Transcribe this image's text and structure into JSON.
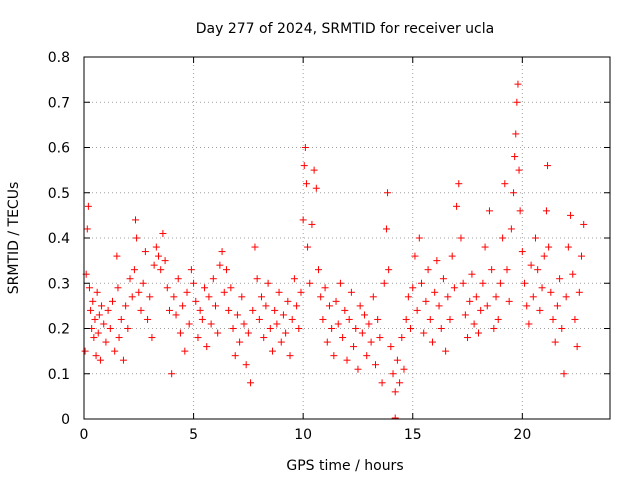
{
  "chart_data": {
    "type": "scatter",
    "title": "Day 277 of 2024, SRMTID for receiver ucla",
    "xlabel": "GPS time / hours",
    "ylabel": "SRMTID / TECUs",
    "xlim": [
      0,
      24
    ],
    "ylim": [
      0,
      0.8
    ],
    "xticks": [
      0,
      5,
      10,
      15,
      20
    ],
    "xtick_labels": [
      "0",
      "5",
      "10",
      "15",
      "20"
    ],
    "yticks": [
      0,
      0.1,
      0.2,
      0.3,
      0.4,
      0.5,
      0.6,
      0.7,
      0.8
    ],
    "ytick_labels": [
      "0",
      "0.1",
      "0.2",
      "0.3",
      "0.4",
      "0.5",
      "0.6",
      "0.7",
      "0.8"
    ],
    "grid": true,
    "marker": "+",
    "color": "#ff0000",
    "series": [
      {
        "name": "SRMTID",
        "points": [
          [
            0.05,
            0.15
          ],
          [
            0.1,
            0.32
          ],
          [
            0.15,
            0.42
          ],
          [
            0.2,
            0.47
          ],
          [
            0.25,
            0.29
          ],
          [
            0.3,
            0.24
          ],
          [
            0.35,
            0.2
          ],
          [
            0.4,
            0.26
          ],
          [
            0.45,
            0.18
          ],
          [
            0.5,
            0.22
          ],
          [
            0.55,
            0.14
          ],
          [
            0.6,
            0.28
          ],
          [
            0.65,
            0.19
          ],
          [
            0.7,
            0.23
          ],
          [
            0.75,
            0.13
          ],
          [
            0.8,
            0.25
          ],
          [
            0.9,
            0.21
          ],
          [
            1.0,
            0.17
          ],
          [
            1.1,
            0.24
          ],
          [
            1.2,
            0.2
          ],
          [
            1.3,
            0.26
          ],
          [
            1.4,
            0.15
          ],
          [
            1.5,
            0.36
          ],
          [
            1.55,
            0.29
          ],
          [
            1.6,
            0.18
          ],
          [
            1.7,
            0.22
          ],
          [
            1.8,
            0.13
          ],
          [
            1.9,
            0.25
          ],
          [
            2.0,
            0.2
          ],
          [
            2.1,
            0.31
          ],
          [
            2.2,
            0.27
          ],
          [
            2.3,
            0.33
          ],
          [
            2.35,
            0.44
          ],
          [
            2.4,
            0.4
          ],
          [
            2.5,
            0.28
          ],
          [
            2.6,
            0.24
          ],
          [
            2.7,
            0.3
          ],
          [
            2.8,
            0.37
          ],
          [
            2.9,
            0.22
          ],
          [
            3.0,
            0.27
          ],
          [
            3.1,
            0.18
          ],
          [
            3.2,
            0.34
          ],
          [
            3.3,
            0.38
          ],
          [
            3.4,
            0.36
          ],
          [
            3.5,
            0.33
          ],
          [
            3.6,
            0.41
          ],
          [
            3.7,
            0.35
          ],
          [
            3.8,
            0.29
          ],
          [
            3.9,
            0.24
          ],
          [
            4.0,
            0.1
          ],
          [
            4.1,
            0.27
          ],
          [
            4.2,
            0.23
          ],
          [
            4.3,
            0.31
          ],
          [
            4.4,
            0.19
          ],
          [
            4.5,
            0.25
          ],
          [
            4.6,
            0.15
          ],
          [
            4.7,
            0.28
          ],
          [
            4.8,
            0.21
          ],
          [
            4.9,
            0.33
          ],
          [
            5.0,
            0.3
          ],
          [
            5.1,
            0.26
          ],
          [
            5.2,
            0.18
          ],
          [
            5.3,
            0.24
          ],
          [
            5.4,
            0.22
          ],
          [
            5.5,
            0.29
          ],
          [
            5.6,
            0.16
          ],
          [
            5.7,
            0.27
          ],
          [
            5.8,
            0.21
          ],
          [
            5.9,
            0.31
          ],
          [
            6.0,
            0.25
          ],
          [
            6.1,
            0.19
          ],
          [
            6.2,
            0.34
          ],
          [
            6.3,
            0.37
          ],
          [
            6.4,
            0.28
          ],
          [
            6.5,
            0.33
          ],
          [
            6.6,
            0.24
          ],
          [
            6.7,
            0.29
          ],
          [
            6.8,
            0.2
          ],
          [
            6.9,
            0.14
          ],
          [
            7.0,
            0.23
          ],
          [
            7.1,
            0.17
          ],
          [
            7.2,
            0.27
          ],
          [
            7.3,
            0.21
          ],
          [
            7.4,
            0.12
          ],
          [
            7.5,
            0.19
          ],
          [
            7.6,
            0.08
          ],
          [
            7.7,
            0.24
          ],
          [
            7.8,
            0.38
          ],
          [
            7.9,
            0.31
          ],
          [
            8.0,
            0.22
          ],
          [
            8.1,
            0.27
          ],
          [
            8.2,
            0.18
          ],
          [
            8.3,
            0.25
          ],
          [
            8.4,
            0.3
          ],
          [
            8.5,
            0.2
          ],
          [
            8.6,
            0.15
          ],
          [
            8.7,
            0.24
          ],
          [
            8.8,
            0.21
          ],
          [
            8.9,
            0.28
          ],
          [
            9.0,
            0.17
          ],
          [
            9.1,
            0.23
          ],
          [
            9.2,
            0.19
          ],
          [
            9.3,
            0.26
          ],
          [
            9.4,
            0.14
          ],
          [
            9.5,
            0.22
          ],
          [
            9.6,
            0.31
          ],
          [
            9.7,
            0.25
          ],
          [
            9.8,
            0.2
          ],
          [
            9.9,
            0.28
          ],
          [
            10.0,
            0.44
          ],
          [
            10.05,
            0.56
          ],
          [
            10.1,
            0.6
          ],
          [
            10.15,
            0.52
          ],
          [
            10.2,
            0.38
          ],
          [
            10.3,
            0.3
          ],
          [
            10.4,
            0.43
          ],
          [
            10.5,
            0.55
          ],
          [
            10.6,
            0.51
          ],
          [
            10.7,
            0.33
          ],
          [
            10.8,
            0.27
          ],
          [
            10.9,
            0.22
          ],
          [
            11.0,
            0.29
          ],
          [
            11.1,
            0.17
          ],
          [
            11.2,
            0.25
          ],
          [
            11.3,
            0.2
          ],
          [
            11.4,
            0.14
          ],
          [
            11.5,
            0.26
          ],
          [
            11.6,
            0.21
          ],
          [
            11.7,
            0.3
          ],
          [
            11.8,
            0.18
          ],
          [
            11.9,
            0.24
          ],
          [
            12.0,
            0.13
          ],
          [
            12.1,
            0.22
          ],
          [
            12.2,
            0.28
          ],
          [
            12.3,
            0.16
          ],
          [
            12.4,
            0.2
          ],
          [
            12.5,
            0.11
          ],
          [
            12.6,
            0.25
          ],
          [
            12.7,
            0.19
          ],
          [
            12.8,
            0.23
          ],
          [
            12.9,
            0.14
          ],
          [
            13.0,
            0.21
          ],
          [
            13.1,
            0.17
          ],
          [
            13.2,
            0.27
          ],
          [
            13.3,
            0.12
          ],
          [
            13.4,
            0.22
          ],
          [
            13.5,
            0.18
          ],
          [
            13.6,
            0.08
          ],
          [
            13.7,
            0.3
          ],
          [
            13.8,
            0.42
          ],
          [
            13.85,
            0.5
          ],
          [
            13.9,
            0.33
          ],
          [
            14.0,
            0.16
          ],
          [
            14.1,
            0.1
          ],
          [
            14.2,
            0.06
          ],
          [
            14.3,
            0.13
          ],
          [
            14.4,
            0.08
          ],
          [
            14.5,
            0.18
          ],
          [
            14.6,
            0.11
          ],
          [
            14.7,
            0.22
          ],
          [
            14.8,
            0.27
          ],
          [
            14.9,
            0.2
          ],
          [
            15.0,
            0.29
          ],
          [
            15.1,
            0.36
          ],
          [
            15.2,
            0.24
          ],
          [
            15.3,
            0.4
          ],
          [
            15.4,
            0.3
          ],
          [
            15.5,
            0.19
          ],
          [
            15.6,
            0.26
          ],
          [
            15.7,
            0.33
          ],
          [
            15.8,
            0.22
          ],
          [
            15.9,
            0.17
          ],
          [
            16.0,
            0.28
          ],
          [
            16.1,
            0.35
          ],
          [
            16.2,
            0.25
          ],
          [
            16.3,
            0.2
          ],
          [
            16.4,
            0.31
          ],
          [
            16.5,
            0.15
          ],
          [
            16.6,
            0.27
          ],
          [
            16.7,
            0.22
          ],
          [
            16.8,
            0.36
          ],
          [
            16.9,
            0.29
          ],
          [
            17.0,
            0.47
          ],
          [
            17.1,
            0.52
          ],
          [
            17.2,
            0.4
          ],
          [
            17.3,
            0.3
          ],
          [
            17.4,
            0.23
          ],
          [
            17.5,
            0.18
          ],
          [
            17.6,
            0.26
          ],
          [
            17.7,
            0.32
          ],
          [
            17.8,
            0.21
          ],
          [
            17.9,
            0.27
          ],
          [
            18.0,
            0.19
          ],
          [
            18.1,
            0.24
          ],
          [
            18.2,
            0.3
          ],
          [
            18.3,
            0.38
          ],
          [
            18.4,
            0.25
          ],
          [
            18.5,
            0.46
          ],
          [
            18.6,
            0.33
          ],
          [
            18.7,
            0.2
          ],
          [
            18.8,
            0.27
          ],
          [
            18.9,
            0.22
          ],
          [
            19.0,
            0.3
          ],
          [
            19.1,
            0.4
          ],
          [
            19.2,
            0.52
          ],
          [
            19.3,
            0.33
          ],
          [
            19.4,
            0.26
          ],
          [
            19.5,
            0.42
          ],
          [
            19.6,
            0.5
          ],
          [
            19.65,
            0.58
          ],
          [
            19.7,
            0.63
          ],
          [
            19.75,
            0.7
          ],
          [
            19.8,
            0.74
          ],
          [
            19.85,
            0.55
          ],
          [
            19.9,
            0.46
          ],
          [
            20.0,
            0.37
          ],
          [
            20.1,
            0.3
          ],
          [
            20.2,
            0.25
          ],
          [
            20.3,
            0.21
          ],
          [
            20.4,
            0.34
          ],
          [
            20.5,
            0.27
          ],
          [
            20.6,
            0.4
          ],
          [
            20.7,
            0.33
          ],
          [
            20.8,
            0.24
          ],
          [
            20.9,
            0.29
          ],
          [
            21.0,
            0.36
          ],
          [
            21.1,
            0.46
          ],
          [
            21.15,
            0.56
          ],
          [
            21.2,
            0.38
          ],
          [
            21.3,
            0.28
          ],
          [
            21.4,
            0.22
          ],
          [
            21.5,
            0.17
          ],
          [
            21.6,
            0.25
          ],
          [
            21.7,
            0.31
          ],
          [
            21.8,
            0.2
          ],
          [
            21.9,
            0.1
          ],
          [
            22.0,
            0.27
          ],
          [
            22.1,
            0.38
          ],
          [
            22.2,
            0.45
          ],
          [
            22.3,
            0.32
          ],
          [
            22.4,
            0.22
          ],
          [
            22.5,
            0.16
          ],
          [
            22.6,
            0.28
          ],
          [
            22.7,
            0.36
          ],
          [
            22.8,
            0.43
          ]
        ]
      }
    ],
    "outlier": [
      14.2,
      0.0
    ]
  }
}
